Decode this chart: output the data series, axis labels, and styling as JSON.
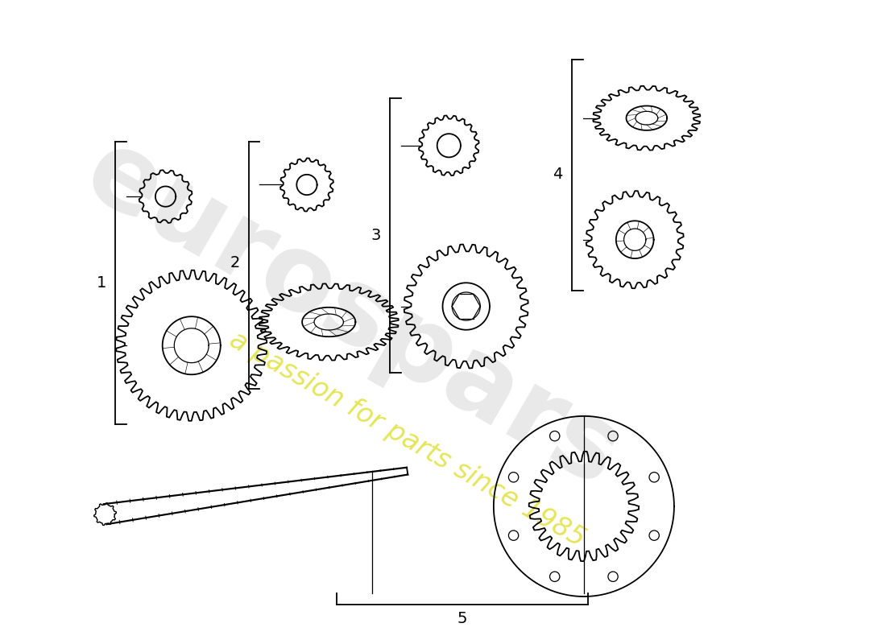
{
  "background_color": "#ffffff",
  "wm_gray": "#c8c8c8",
  "wm_yellow": "#d8d800",
  "watermark1": "eurospars",
  "watermark2": "a passion for parts since 1985"
}
